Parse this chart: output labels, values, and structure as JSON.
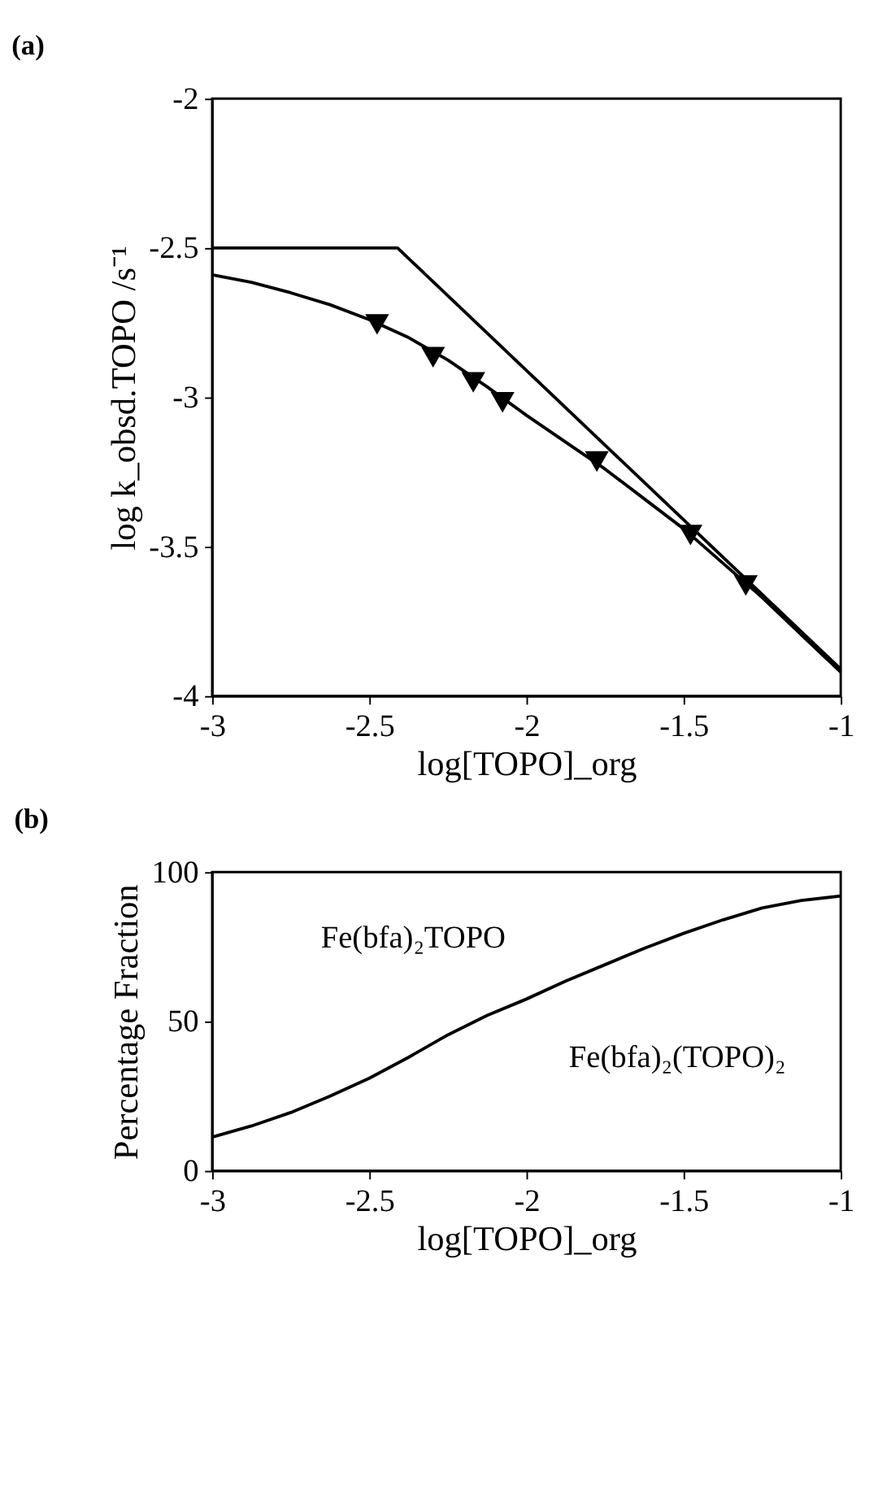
{
  "chart_data": [
    {
      "type": "line",
      "title": "(a)",
      "xlabel": "log[TOPO]_org",
      "ylabel": "log k_obsd.TOPO /s⁻¹",
      "xlim": [
        -3,
        -1
      ],
      "ylim": [
        -4,
        -2
      ],
      "xticks": [
        -3,
        -2.5,
        -2,
        -1.5,
        -1
      ],
      "yticks": [
        -4,
        -3.5,
        -3,
        -2.5,
        -2
      ],
      "grid": false,
      "legend": false,
      "series": [
        {
          "type": "scatter",
          "marker": "triangle",
          "color": "#000000",
          "x": [
            -2.475,
            -2.297,
            -2.169,
            -2.076,
            -1.776,
            -1.478,
            -1.302
          ],
          "values": [
            -2.756,
            -2.866,
            -2.95,
            -3.017,
            -3.215,
            -3.461,
            -3.63
          ]
        },
        {
          "marker": "none",
          "line_style": "solid",
          "color": "#000000",
          "x": [
            -3,
            -2.875,
            -2.75,
            -2.625,
            -2.5,
            -2.375,
            -2.25,
            -2.125,
            -2,
            -1.875,
            -1.75,
            -1.625,
            -1.5,
            -1.375,
            -1.25,
            -1.125,
            -1
          ],
          "values": [
            -2.59,
            -2.615,
            -2.65,
            -2.69,
            -2.74,
            -2.8,
            -2.875,
            -2.965,
            -3.06,
            -3.15,
            -3.24,
            -3.34,
            -3.44,
            -3.555,
            -3.67,
            -3.795,
            -3.92
          ]
        },
        {
          "marker": "none",
          "line_style": "solid",
          "color": "#000000",
          "x": [
            -3,
            -2.41,
            -1
          ],
          "values": [
            -2.5,
            -2.5,
            -3.91
          ]
        }
      ]
    },
    {
      "type": "line",
      "title": "(b)",
      "xlabel": "log[TOPO]_org",
      "ylabel": "Percentage Fraction",
      "xlim": [
        -3,
        -1
      ],
      "ylim": [
        0,
        100
      ],
      "xticks": [
        -3,
        -2.5,
        -2,
        -1.5,
        -1
      ],
      "yticks": [
        0,
        50,
        100
      ],
      "grid": false,
      "legend": false,
      "annotations": [
        "Fe(bfa)₂TOPO",
        "Fe(bfa)₂(TOPO)₂"
      ],
      "series": [
        {
          "marker": "none",
          "line_style": "solid",
          "color": "#000000",
          "x": [
            -3,
            -2.875,
            -2.75,
            -2.625,
            -2.5,
            -2.375,
            -2.25,
            -2.125,
            -2,
            -1.875,
            -1.75,
            -1.625,
            -1.5,
            -1.375,
            -1.25,
            -1.125,
            -1
          ],
          "values": [
            11.3,
            15,
            19.5,
            25,
            31,
            38,
            45.5,
            52,
            57.5,
            63.5,
            69,
            74.5,
            79.5,
            84,
            88,
            90.5,
            92
          ]
        }
      ]
    }
  ]
}
